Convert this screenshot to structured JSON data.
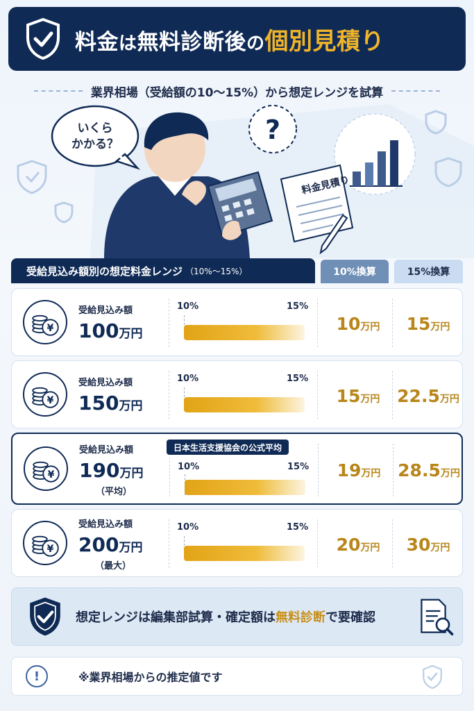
{
  "hero": {
    "title_part1": "料金",
    "title_part2": "は",
    "title_part3": "無料診断後",
    "title_part4": "の",
    "title_part5": "個別見積り"
  },
  "subhead": "業界相場（受給額の10〜15%）から想定レンジを試算",
  "illustration": {
    "speech_bubble": "いくら\nかかる？",
    "question_mark": "?",
    "document_title": "料金見積り"
  },
  "table": {
    "header_main": "受給見込み額別の想定料金レンジ",
    "header_main_paren": "（10%〜15%）",
    "header_10": "10%換算",
    "header_15": "15%換算",
    "label_small": "受給見込み額",
    "pct_low": "10%",
    "pct_high": "15%",
    "yen_unit": "万円",
    "rows": [
      {
        "amount": "100",
        "unit": "万円",
        "note": "",
        "badge": "",
        "low": "10",
        "high": "15"
      },
      {
        "amount": "150",
        "unit": "万円",
        "note": "",
        "badge": "",
        "low": "15",
        "high": "22.5"
      },
      {
        "amount": "190",
        "unit": "万円",
        "note": "（平均）",
        "badge": "日本生活支援協会の公式平均",
        "low": "19",
        "high": "28.5"
      },
      {
        "amount": "200",
        "unit": "万円",
        "note": "（最大）",
        "badge": "",
        "low": "20",
        "high": "30"
      }
    ]
  },
  "callout": {
    "text_part1": "想定レンジは編集部試算・確定額は",
    "text_part2": "無料診断",
    "text_part3": "で要確認"
  },
  "footnote": {
    "icon": "!",
    "text": "※業界相場からの推定値です"
  },
  "colors": {
    "navy": "#0f2a55",
    "gold": "#f0b429",
    "gold_text": "#b8861a"
  }
}
